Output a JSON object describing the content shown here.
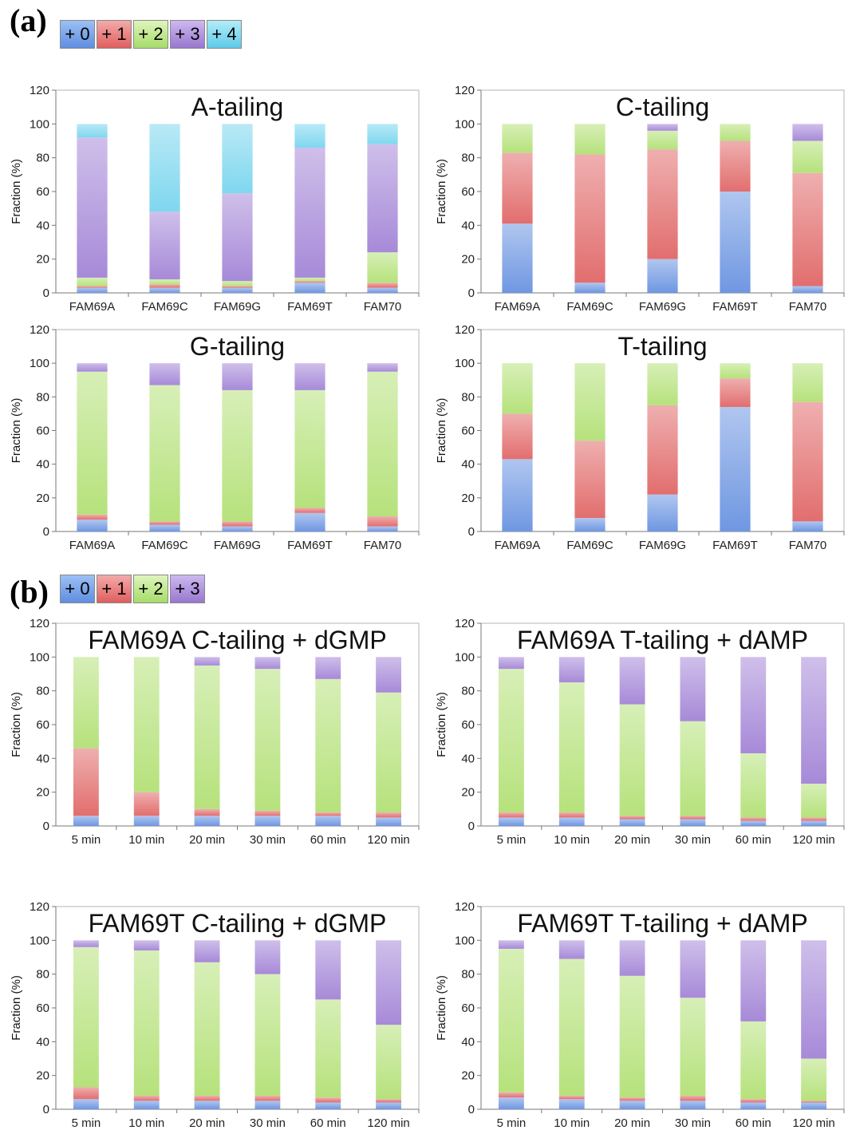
{
  "panels": {
    "a": {
      "label": "(a)",
      "legend": [
        "+ 0",
        "+ 1",
        "+ 2",
        "+ 3",
        "+ 4"
      ],
      "legend_colors": [
        "#5f8ee0",
        "#e57474",
        "#b4e07a",
        "#a586d8",
        "#6fd3ec"
      ]
    },
    "b": {
      "label": "(b)",
      "legend": [
        "+ 0",
        "+ 1",
        "+ 2",
        "+ 3"
      ],
      "legend_colors": [
        "#5f8ee0",
        "#e57474",
        "#b4e07a",
        "#a586d8"
      ]
    }
  },
  "series_colors": {
    "+0": "#6f97e2",
    "+1": "#e26e6e",
    "+2": "#b6e27c",
    "+3": "#a78ad8",
    "+4": "#7fd7ef"
  },
  "chart_data": [
    {
      "type": "bar",
      "stacked": true,
      "title": "A-tailing",
      "ylabel": "Fraction (%)",
      "ylim": [
        0,
        120
      ],
      "yticks": [
        0,
        20,
        40,
        60,
        80,
        100,
        120
      ],
      "categories": [
        "FAM69A",
        "FAM69C",
        "FAM69G",
        "FAM69T",
        "FAM70"
      ],
      "series": [
        {
          "name": "+ 0",
          "values": [
            3,
            3,
            3,
            6,
            3
          ]
        },
        {
          "name": "+ 1",
          "values": [
            1,
            2,
            1,
            1,
            3
          ]
        },
        {
          "name": "+ 2",
          "values": [
            5,
            3,
            3,
            2,
            18
          ]
        },
        {
          "name": "+ 3",
          "values": [
            83,
            40,
            52,
            77,
            64
          ]
        },
        {
          "name": "+ 4",
          "values": [
            8,
            52,
            41,
            14,
            12
          ]
        }
      ]
    },
    {
      "type": "bar",
      "stacked": true,
      "title": "C-tailing",
      "ylabel": "Fraction (%)",
      "ylim": [
        0,
        120
      ],
      "yticks": [
        0,
        20,
        40,
        60,
        80,
        100,
        120
      ],
      "categories": [
        "FAM69A",
        "FAM69C",
        "FAM69G",
        "FAM69T",
        "FAM70"
      ],
      "series": [
        {
          "name": "+ 0",
          "values": [
            41,
            6,
            20,
            60,
            4
          ]
        },
        {
          "name": "+ 1",
          "values": [
            42,
            76,
            65,
            30,
            67
          ]
        },
        {
          "name": "+ 2",
          "values": [
            17,
            18,
            11,
            10,
            19
          ]
        },
        {
          "name": "+ 3",
          "values": [
            0,
            0,
            4,
            0,
            10
          ]
        }
      ]
    },
    {
      "type": "bar",
      "stacked": true,
      "title": "G-tailing",
      "ylabel": "Fraction (%)",
      "ylim": [
        0,
        120
      ],
      "yticks": [
        0,
        20,
        40,
        60,
        80,
        100,
        120
      ],
      "categories": [
        "FAM69A",
        "FAM69C",
        "FAM69G",
        "FAM69T",
        "FAM70"
      ],
      "series": [
        {
          "name": "+ 0",
          "values": [
            7,
            4,
            3,
            11,
            3
          ]
        },
        {
          "name": "+ 1",
          "values": [
            3,
            2,
            3,
            3,
            6
          ]
        },
        {
          "name": "+ 2",
          "values": [
            85,
            81,
            78,
            70,
            86
          ]
        },
        {
          "name": "+ 3",
          "values": [
            5,
            13,
            16,
            16,
            5
          ]
        }
      ]
    },
    {
      "type": "bar",
      "stacked": true,
      "title": "T-tailing",
      "ylabel": "Fraction (%)",
      "ylim": [
        0,
        120
      ],
      "yticks": [
        0,
        20,
        40,
        60,
        80,
        100,
        120
      ],
      "categories": [
        "FAM69A",
        "FAM69C",
        "FAM69G",
        "FAM69T",
        "FAM70"
      ],
      "series": [
        {
          "name": "+ 0",
          "values": [
            43,
            8,
            22,
            74,
            6
          ]
        },
        {
          "name": "+ 1",
          "values": [
            27,
            46,
            53,
            17,
            71
          ]
        },
        {
          "name": "+ 2",
          "values": [
            30,
            46,
            25,
            9,
            23
          ]
        }
      ]
    },
    {
      "type": "bar",
      "stacked": true,
      "title": "FAM69A C-tailing + dGMP",
      "ylabel": "Fraction (%)",
      "ylim": [
        0,
        120
      ],
      "yticks": [
        0,
        20,
        40,
        60,
        80,
        100,
        120
      ],
      "categories": [
        "5 min",
        "10 min",
        "20 min",
        "30 min",
        "60 min",
        "120 min"
      ],
      "series": [
        {
          "name": "+ 0",
          "values": [
            6,
            6,
            6,
            6,
            6,
            5
          ]
        },
        {
          "name": "+ 1",
          "values": [
            40,
            14,
            4,
            3,
            2,
            3
          ]
        },
        {
          "name": "+ 2",
          "values": [
            54,
            80,
            85,
            84,
            79,
            71
          ]
        },
        {
          "name": "+ 3",
          "values": [
            0,
            0,
            5,
            7,
            13,
            21
          ]
        }
      ]
    },
    {
      "type": "bar",
      "stacked": true,
      "title": "FAM69A T-tailing + dAMP",
      "ylabel": "Fraction (%)",
      "ylim": [
        0,
        120
      ],
      "yticks": [
        0,
        20,
        40,
        60,
        80,
        100,
        120
      ],
      "categories": [
        "5 min",
        "10 min",
        "20 min",
        "30 min",
        "60 min",
        "120 min"
      ],
      "series": [
        {
          "name": "+ 0",
          "values": [
            5,
            5,
            4,
            4,
            3,
            3
          ]
        },
        {
          "name": "+ 1",
          "values": [
            3,
            3,
            2,
            2,
            2,
            2
          ]
        },
        {
          "name": "+ 2",
          "values": [
            85,
            77,
            66,
            56,
            38,
            20
          ]
        },
        {
          "name": "+ 3",
          "values": [
            7,
            15,
            28,
            38,
            57,
            75
          ]
        }
      ]
    },
    {
      "type": "bar",
      "stacked": true,
      "title": "FAM69T C-tailing + dGMP",
      "ylabel": "Fraction (%)",
      "ylim": [
        0,
        120
      ],
      "yticks": [
        0,
        20,
        40,
        60,
        80,
        100,
        120
      ],
      "categories": [
        "5 min",
        "10 min",
        "20 min",
        "30 min",
        "60 min",
        "120 min"
      ],
      "series": [
        {
          "name": "+ 0",
          "values": [
            6,
            5,
            5,
            5,
            4,
            4
          ]
        },
        {
          "name": "+ 1",
          "values": [
            7,
            3,
            3,
            3,
            3,
            2
          ]
        },
        {
          "name": "+ 2",
          "values": [
            83,
            86,
            79,
            72,
            58,
            44
          ]
        },
        {
          "name": "+ 3",
          "values": [
            4,
            6,
            13,
            20,
            35,
            50
          ]
        }
      ]
    },
    {
      "type": "bar",
      "stacked": true,
      "title": "FAM69T T-tailing + dAMP",
      "ylabel": "Fraction (%)",
      "ylim": [
        0,
        120
      ],
      "yticks": [
        0,
        20,
        40,
        60,
        80,
        100,
        120
      ],
      "categories": [
        "5 min",
        "10 min",
        "20 min",
        "30 min",
        "60 min",
        "120 min"
      ],
      "series": [
        {
          "name": "+ 0",
          "values": [
            7,
            6,
            5,
            5,
            4,
            4
          ]
        },
        {
          "name": "+ 1",
          "values": [
            3,
            2,
            2,
            3,
            2,
            1
          ]
        },
        {
          "name": "+ 2",
          "values": [
            85,
            81,
            72,
            58,
            46,
            25
          ]
        },
        {
          "name": "+ 3",
          "values": [
            5,
            11,
            21,
            34,
            48,
            70
          ]
        }
      ]
    }
  ]
}
